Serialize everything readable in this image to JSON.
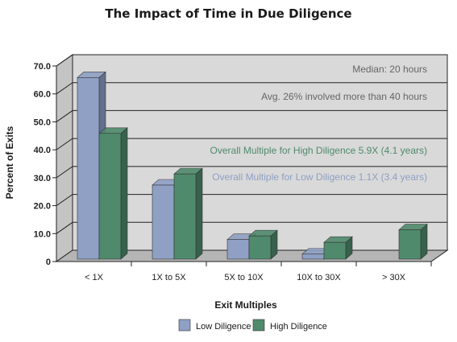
{
  "chart_data": {
    "type": "bar",
    "title": "The Impact of Time in Due Diligence",
    "xlabel": "Exit Multiples",
    "ylabel": "Percent of Exits",
    "categories": [
      "< 1X",
      "1X to 5X",
      "5X to 10X",
      "10X to 30X",
      "> 30X"
    ],
    "series": [
      {
        "name": "Low Diligence",
        "values": [
          65.0,
          26.5,
          7.0,
          1.8,
          0.0
        ],
        "color": "#8fa0c4"
      },
      {
        "name": "High Diligence",
        "values": [
          45.0,
          30.5,
          8.3,
          6.0,
          10.5
        ],
        "color": "#4f8a6c"
      }
    ],
    "ylim": [
      0,
      70
    ],
    "yticks": [
      "0",
      "10.0",
      "20.0",
      "30.0",
      "40.0",
      "50.0",
      "60.0",
      "70.0"
    ],
    "grid": true,
    "legend_position": "bottom",
    "annotations": [
      {
        "text": "Median: 20 hours",
        "color": "#666666"
      },
      {
        "text": "Avg. 26% involved more than 40 hours",
        "color": "#666666"
      },
      {
        "text": "Overall Multiple for High Diligence 5.9X (4.1 years)",
        "color": "#4f8a6c"
      },
      {
        "text": "Overall Multiple for Low Diligence 1.1X (3.4 years)",
        "color": "#8fa0c4"
      }
    ]
  }
}
